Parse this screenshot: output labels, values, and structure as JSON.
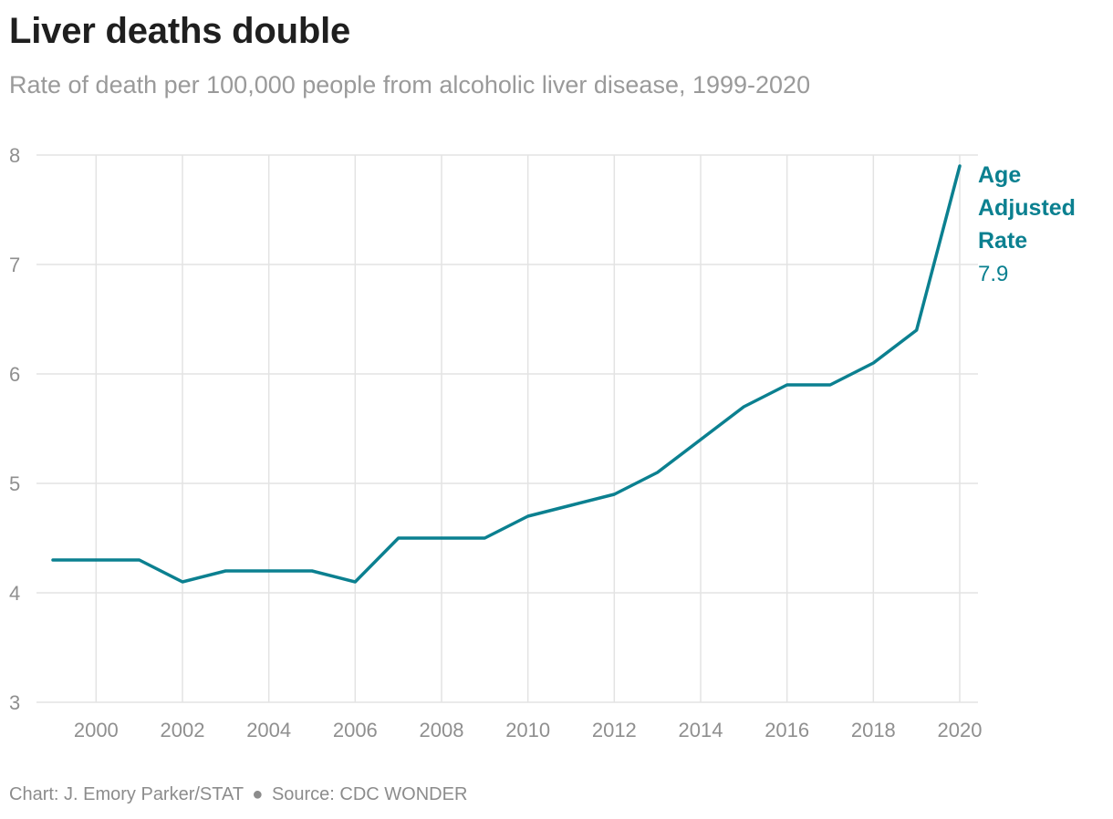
{
  "header": {
    "title": "Liver deaths double",
    "subtitle": "Rate of death per 100,000 people from alcoholic liver disease, 1999-2020"
  },
  "footer": {
    "credit": "Chart: J. Emory Parker/STAT",
    "separator": "●",
    "source": "Source: CDC WONDER"
  },
  "colors": {
    "line": "#0b8090",
    "grid": "#e3e3e3",
    "axis_text": "#8f8f8f"
  },
  "chart_data": {
    "type": "line",
    "title": "Liver deaths double",
    "subtitle": "Rate of death per 100,000 people from alcoholic liver disease, 1999-2020",
    "xlabel": "",
    "ylabel": "",
    "xlim": [
      1999,
      2020
    ],
    "ylim": [
      3,
      8
    ],
    "x_ticks": [
      2000,
      2002,
      2004,
      2006,
      2008,
      2010,
      2012,
      2014,
      2016,
      2018,
      2020
    ],
    "y_ticks": [
      3,
      4,
      5,
      6,
      7,
      8
    ],
    "grid": true,
    "x": [
      1999,
      2000,
      2001,
      2002,
      2003,
      2004,
      2005,
      2006,
      2007,
      2008,
      2009,
      2010,
      2011,
      2012,
      2013,
      2014,
      2015,
      2016,
      2017,
      2018,
      2019,
      2020
    ],
    "series": [
      {
        "name": "Age Adjusted Rate",
        "label_lines": [
          "Age",
          "Adjusted",
          "Rate"
        ],
        "last_value_label": "7.9",
        "values": [
          4.3,
          4.3,
          4.3,
          4.1,
          4.2,
          4.2,
          4.2,
          4.1,
          4.5,
          4.5,
          4.5,
          4.7,
          4.8,
          4.9,
          5.1,
          5.4,
          5.7,
          5.9,
          5.9,
          6.1,
          6.4,
          7.9
        ]
      }
    ]
  }
}
